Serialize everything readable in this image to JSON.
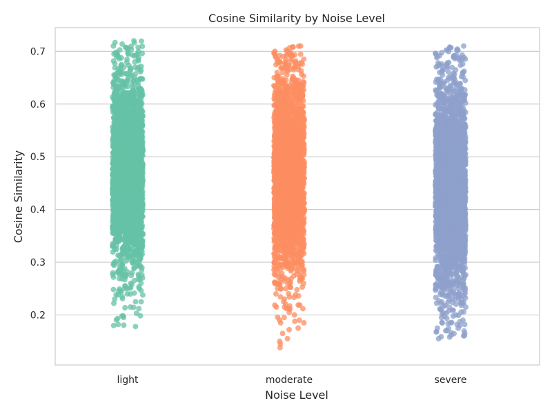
{
  "chart_data": {
    "type": "scatter",
    "subtype": "strip",
    "title": "Cosine Similarity by Noise Level",
    "xlabel": "Noise Level",
    "ylabel": "Cosine Similarity",
    "categories": [
      "light",
      "moderate",
      "severe"
    ],
    "yticks": [
      "0.2",
      "0.3",
      "0.4",
      "0.5",
      "0.6",
      "0.7"
    ],
    "ylim": [
      0.105,
      0.745
    ],
    "grid": "horizontal",
    "series": [
      {
        "category": "light",
        "color": "#66c2a5",
        "points_approx": 3000,
        "center": 0.47,
        "min": 0.178,
        "max": 0.72,
        "dense_min": 0.33,
        "dense_max": 0.62,
        "values": [
          0.72,
          0.68,
          0.677,
          0.673,
          0.665,
          0.66,
          0.657,
          0.655,
          0.65,
          0.648,
          0.645,
          0.64,
          0.632,
          0.63,
          0.625,
          0.62,
          0.615,
          0.61,
          0.28,
          0.27,
          0.265,
          0.26,
          0.255,
          0.25,
          0.245,
          0.24,
          0.235,
          0.23,
          0.225,
          0.222,
          0.215,
          0.195,
          0.193,
          0.182,
          0.18,
          0.178
        ]
      },
      {
        "category": "moderate",
        "color": "#fc8d62",
        "points_approx": 3000,
        "center": 0.465,
        "min": 0.138,
        "max": 0.71,
        "dense_min": 0.32,
        "dense_max": 0.61,
        "values": [
          0.71,
          0.708,
          0.7,
          0.692,
          0.68,
          0.668,
          0.665,
          0.66,
          0.65,
          0.645,
          0.64,
          0.635,
          0.63,
          0.625,
          0.62,
          0.615,
          0.61,
          0.27,
          0.26,
          0.25,
          0.24,
          0.23,
          0.225,
          0.22,
          0.212,
          0.205,
          0.2,
          0.195,
          0.19,
          0.188,
          0.185,
          0.175,
          0.172,
          0.165,
          0.155,
          0.15,
          0.145,
          0.138
        ]
      },
      {
        "category": "severe",
        "color": "#8da0cb",
        "points_approx": 3000,
        "center": 0.44,
        "min": 0.155,
        "max": 0.71,
        "dense_min": 0.28,
        "dense_max": 0.6,
        "values": [
          0.71,
          0.683,
          0.672,
          0.655,
          0.652,
          0.642,
          0.64,
          0.635,
          0.625,
          0.62,
          0.615,
          0.61,
          0.605,
          0.26,
          0.25,
          0.24,
          0.235,
          0.23,
          0.225,
          0.22,
          0.215,
          0.21,
          0.2,
          0.195,
          0.19,
          0.185,
          0.182,
          0.18,
          0.175,
          0.17,
          0.168,
          0.165,
          0.158,
          0.155
        ]
      }
    ]
  }
}
